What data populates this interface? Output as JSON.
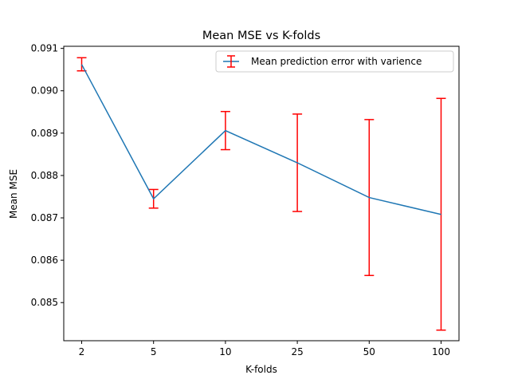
{
  "chart_data": {
    "type": "line",
    "title": "Mean MSE vs K-folds",
    "xlabel": "K-folds",
    "ylabel": "Mean MSE",
    "categories": [
      "2",
      "5",
      "10",
      "25",
      "50",
      "100"
    ],
    "series": [
      {
        "name": "Mean prediction error with varience",
        "values": [
          0.09062,
          0.08745,
          0.08906,
          0.0883,
          0.08748,
          0.08708
        ],
        "error_low": [
          0.09047,
          0.08723,
          0.08861,
          0.08715,
          0.08564,
          0.08435
        ],
        "error_high": [
          0.09078,
          0.08767,
          0.08951,
          0.08945,
          0.08932,
          0.08982
        ]
      }
    ],
    "yticks": [
      "0.085",
      "0.086",
      "0.087",
      "0.088",
      "0.089",
      "0.090",
      "0.091"
    ],
    "ylim": [
      0.0841,
      0.09105
    ],
    "grid": false,
    "legend_position": "upper right",
    "colors": {
      "line": "#1f77b4",
      "errorbar": "#ff0000"
    }
  }
}
